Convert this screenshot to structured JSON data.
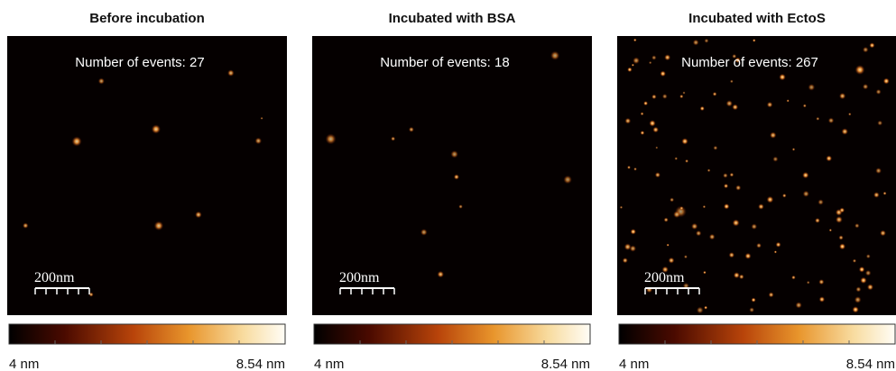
{
  "panels": [
    {
      "title": "Before incubation",
      "events": "Number of events: 27",
      "scale_bar": "200nm",
      "colorbar": {
        "min_label": "4 nm",
        "max_label": "8.54 nm"
      }
    },
    {
      "title": "Incubated with BSA",
      "events": "Number of events: 18",
      "scale_bar": "200nm",
      "colorbar": {
        "min_label": "4 nm",
        "max_label": "8.54 nm"
      }
    },
    {
      "title": "Incubated with EctoS",
      "events": "Number of events: 267",
      "scale_bar": "200nm",
      "colorbar": {
        "min_label": "4 nm",
        "max_label": "8.54 nm"
      }
    }
  ]
}
